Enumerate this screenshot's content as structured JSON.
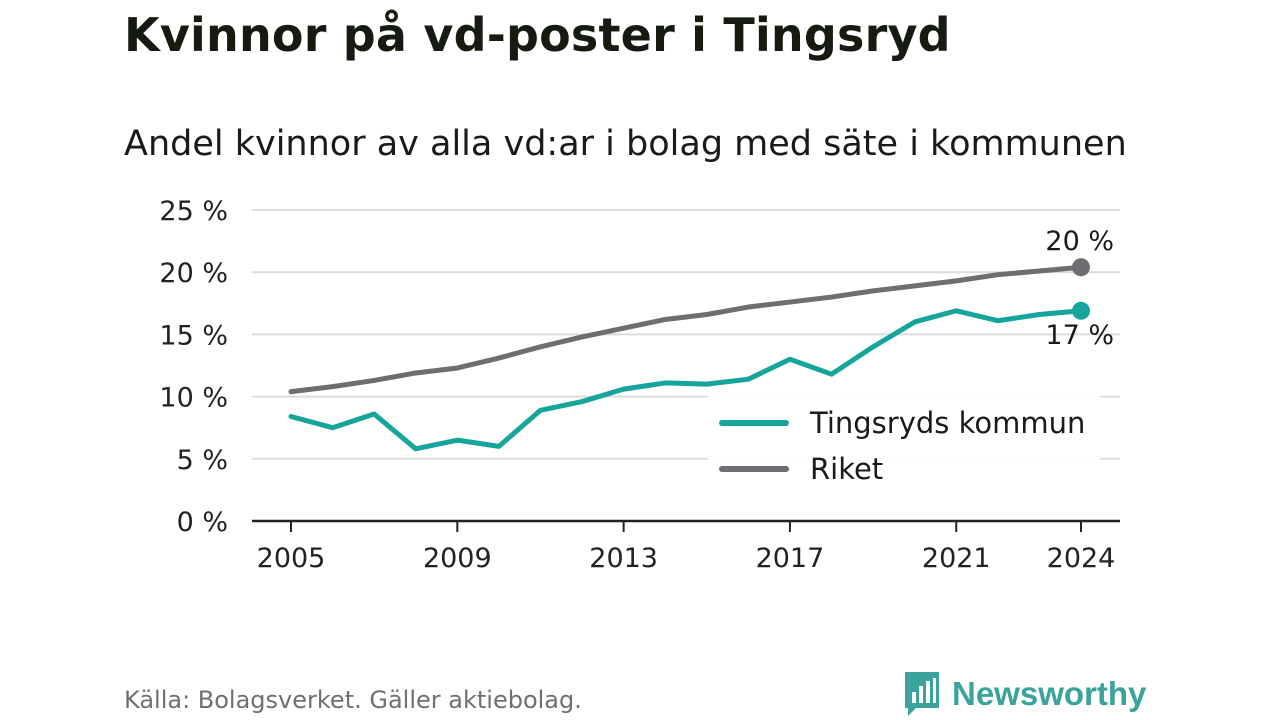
{
  "title": "Kvinnor på vd-poster i Tingsryd",
  "subtitle": "Andel kvinnor av alla vd:ar i bolag med säte i kommunen",
  "source": "Källa: Bolagsverket. Gäller aktiebolag.",
  "brand": {
    "name": "Newsworthy",
    "icon": "newsworthy-logo-icon",
    "color": "#3aa39b"
  },
  "chart_data": {
    "type": "line",
    "x": [
      2005,
      2006,
      2007,
      2008,
      2009,
      2010,
      2011,
      2012,
      2013,
      2014,
      2015,
      2016,
      2017,
      2018,
      2019,
      2020,
      2021,
      2022,
      2023,
      2024
    ],
    "series": [
      {
        "name": "Tingsryds kommun",
        "color": "#16a59a",
        "values": [
          8.4,
          7.5,
          8.6,
          5.8,
          6.5,
          6.0,
          8.9,
          9.6,
          10.6,
          11.1,
          11.0,
          11.4,
          13.0,
          11.8,
          14.0,
          16.0,
          16.9,
          16.1,
          16.6,
          16.9
        ],
        "end_label": "17 %"
      },
      {
        "name": "Riket",
        "color": "#6e6d72",
        "values": [
          10.4,
          10.8,
          11.3,
          11.9,
          12.3,
          13.1,
          14.0,
          14.8,
          15.5,
          16.2,
          16.6,
          17.2,
          17.6,
          18.0,
          18.5,
          18.9,
          19.3,
          19.8,
          20.1,
          20.4
        ],
        "end_label": "20 %"
      }
    ],
    "xticks": [
      "2005",
      "2009",
      "2013",
      "2017",
      "2021",
      "2024"
    ],
    "ytick_labels": [
      "0 %",
      "5 %",
      "10 %",
      "15 %",
      "20 %",
      "25 %"
    ],
    "yticks": [
      0,
      5,
      10,
      15,
      20,
      25
    ],
    "ylim": [
      0,
      25
    ],
    "xlim": [
      2005,
      2024
    ],
    "grid": true,
    "legend_position": "bottom-right"
  }
}
